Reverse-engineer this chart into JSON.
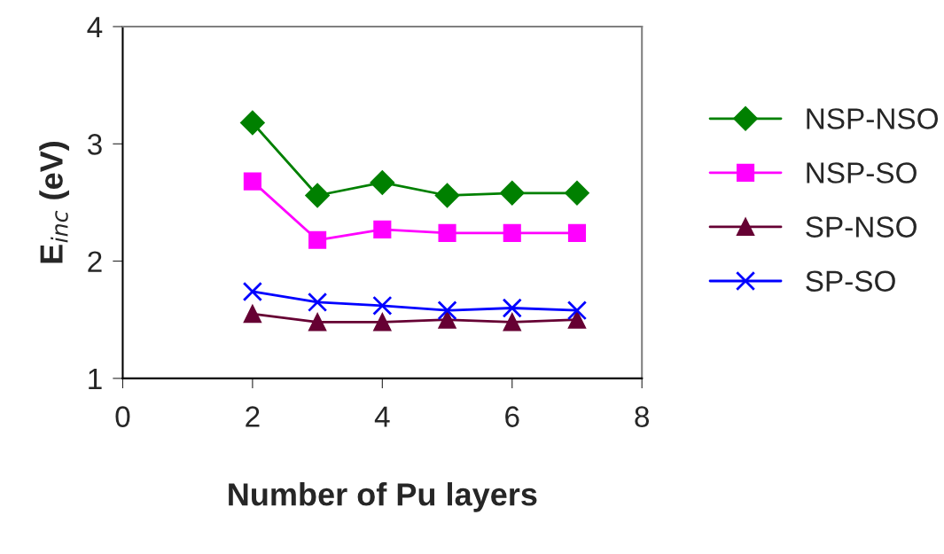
{
  "chart_data": {
    "type": "line",
    "xlabel": "Number of Pu layers",
    "ylabel": "E$_{inc}$ (eV)",
    "x": [
      2,
      3,
      4,
      5,
      6,
      7
    ],
    "xlim": [
      0,
      8
    ],
    "xticks": [
      0,
      2,
      4,
      6,
      8
    ],
    "ylim": [
      1,
      4
    ],
    "yticks": [
      1,
      2,
      3,
      4
    ],
    "grid": false,
    "legend": "right",
    "line_style": "solid",
    "series": [
      {
        "name": "NSP-NSO",
        "color": "#008000",
        "marker": "diamond",
        "values": [
          3.18,
          2.56,
          2.67,
          2.56,
          2.58,
          2.58
        ]
      },
      {
        "name": "NSP-SO",
        "color": "#ff00ff",
        "marker": "square",
        "values": [
          2.68,
          2.18,
          2.27,
          2.24,
          2.24,
          2.24
        ]
      },
      {
        "name": "SP-NSO",
        "color": "#660033",
        "marker": "triangle",
        "values": [
          1.55,
          1.48,
          1.48,
          1.5,
          1.48,
          1.5
        ]
      },
      {
        "name": "SP-SO",
        "color": "#0000ff",
        "marker": "cross",
        "values": [
          1.74,
          1.65,
          1.62,
          1.58,
          1.6,
          1.58
        ]
      }
    ]
  }
}
